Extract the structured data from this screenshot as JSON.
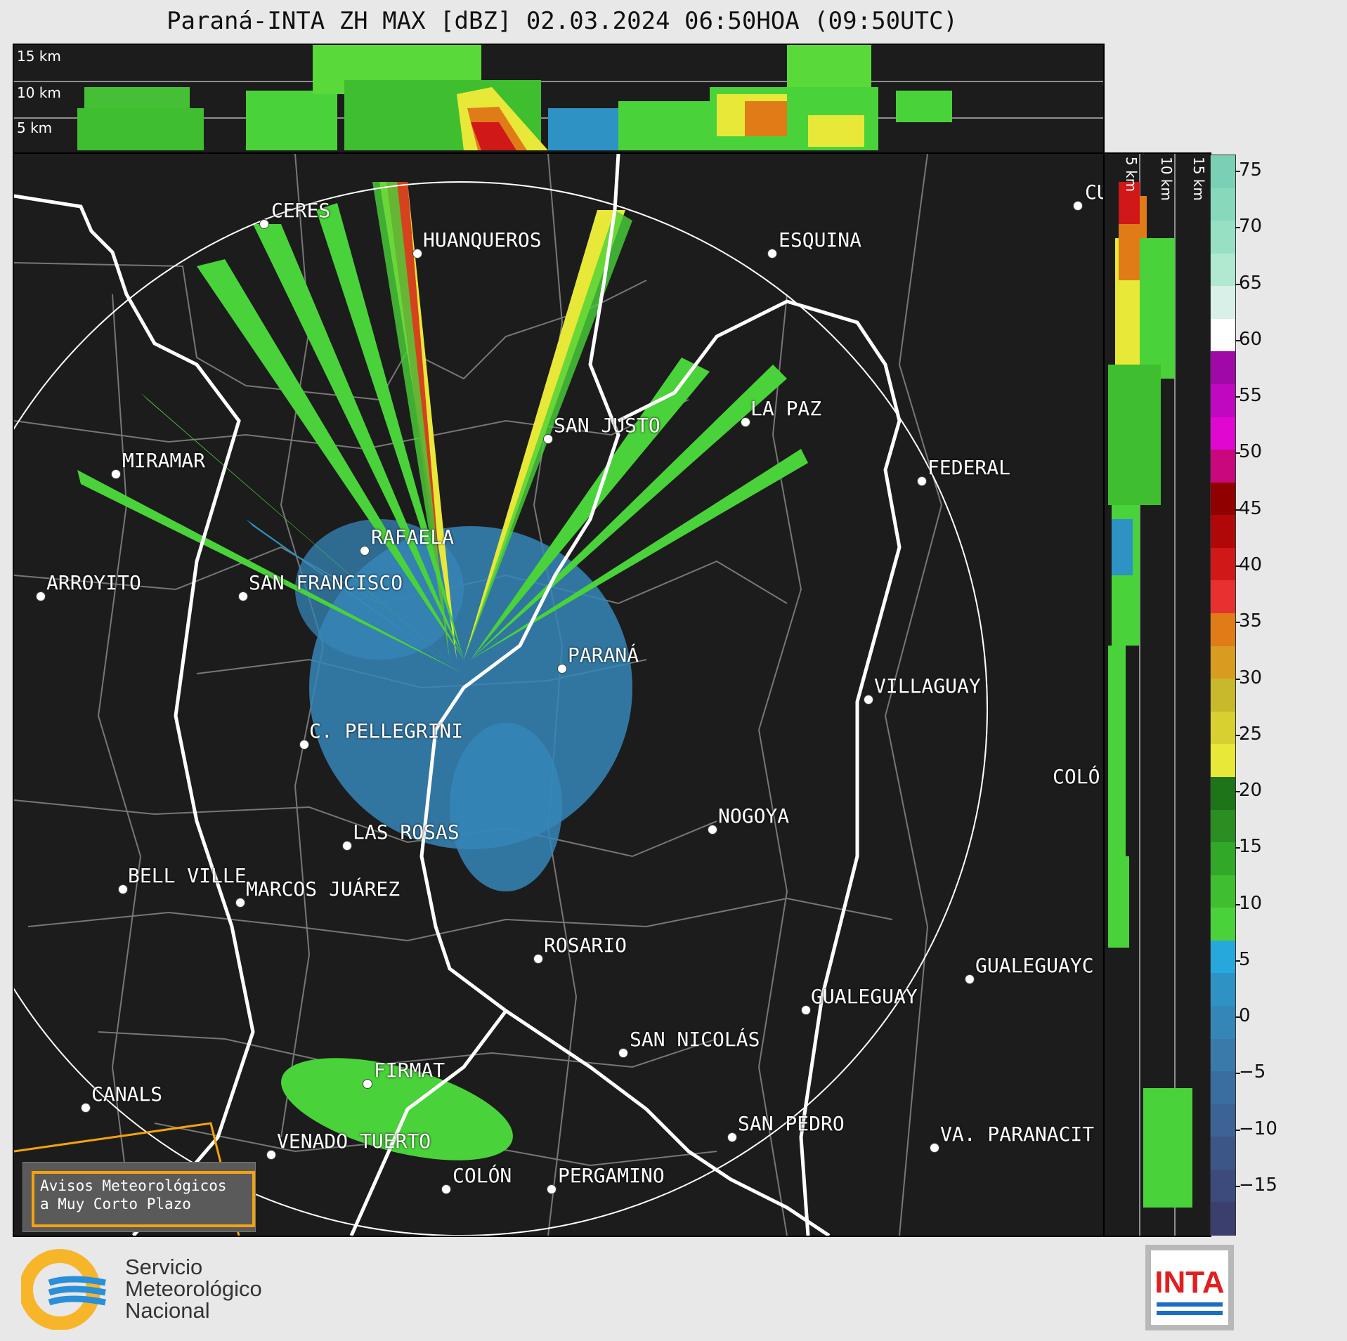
{
  "title": "Paraná-INTA ZH MAX [dBZ] 02.03.2024 06:50HOA (09:50UTC)",
  "top_panel": {
    "height_labels": [
      "15 km",
      "10 km",
      "5 km"
    ]
  },
  "side_panel": {
    "height_labels": [
      "5 km",
      "10 km",
      "15 km"
    ]
  },
  "cities": [
    {
      "name": "CERES",
      "lx": 0.227,
      "ly": 0.065
    },
    {
      "name": "HUANQUEROS",
      "lx": 0.368,
      "ly": 0.092
    },
    {
      "name": "ESQUINA",
      "lx": 0.694,
      "ly": 0.092
    },
    {
      "name": "CU",
      "lx": 0.977,
      "ly": 0.048
    },
    {
      "name": "SAN JUSTO",
      "lx": 0.487,
      "ly": 0.263
    },
    {
      "name": "LA PAZ",
      "lx": 0.669,
      "ly": 0.248
    },
    {
      "name": "MIRAMAR",
      "lx": 0.092,
      "ly": 0.296
    },
    {
      "name": "FEDERAL",
      "lx": 0.832,
      "ly": 0.302
    },
    {
      "name": "RAFAELA",
      "lx": 0.319,
      "ly": 0.366
    },
    {
      "name": "ARROYITO",
      "lx": 0.024,
      "ly": 0.409
    },
    {
      "name": "SAN FRANCISCO",
      "lx": 0.208,
      "ly": 0.409
    },
    {
      "name": "PARANÁ",
      "lx": 0.503,
      "ly": 0.476
    },
    {
      "name": "VILLAGUAY",
      "lx": 0.783,
      "ly": 0.504
    },
    {
      "name": "C. PELLEGRINI",
      "lx": 0.264,
      "ly": 0.545
    },
    {
      "name": "COLÓ",
      "lx": 0.956,
      "ly": 0.578
    },
    {
      "name": "NOGOYA",
      "lx": 0.64,
      "ly": 0.62
    },
    {
      "name": "LAS ROSAS",
      "lx": 0.304,
      "ly": 0.636
    },
    {
      "name": "BELL VILLE",
      "lx": 0.098,
      "ly": 0.678
    },
    {
      "name": "MARCOS JUÁREZ",
      "lx": 0.206,
      "ly": 0.691
    },
    {
      "name": "ROSARIO",
      "lx": 0.481,
      "ly": 0.741
    },
    {
      "name": "GUALEGUAYC",
      "lx": 0.876,
      "ly": 0.761
    },
    {
      "name": "GUALEGUAY",
      "lx": 0.726,
      "ly": 0.788
    },
    {
      "name": "SAN NICOLÁS",
      "lx": 0.561,
      "ly": 0.828
    },
    {
      "name": "FIRMAT",
      "lx": 0.325,
      "ly": 0.855
    },
    {
      "name": "CANALS",
      "lx": 0.064,
      "ly": 0.876
    },
    {
      "name": "SAN PEDRO",
      "lx": 0.659,
      "ly": 0.905
    },
    {
      "name": "VA. PARANACIT",
      "lx": 0.845,
      "ly": 0.915
    },
    {
      "name": "VENADO TUERTO",
      "lx": 0.235,
      "ly": 0.922
    },
    {
      "name": "COLÓN",
      "lx": 0.395,
      "ly": 0.952
    },
    {
      "name": "PERGAMINO",
      "lx": 0.492,
      "ly": 0.952
    }
  ],
  "warning": {
    "line1": "Avisos Meteorológicos",
    "line2": "a Muy Corto Plazo"
  },
  "colorbar": {
    "ticks": [
      "75",
      "70",
      "65",
      "60",
      "55",
      "50",
      "45",
      "40",
      "35",
      "30",
      "25",
      "20",
      "15",
      "10",
      "5",
      "0",
      "−5",
      "−10",
      "−15"
    ],
    "colors": [
      "#3a3f6e",
      "#3c4a7c",
      "#3d5688",
      "#3d6294",
      "#3b6ea0",
      "#3a7aab",
      "#3586b8",
      "#2e93c4",
      "#26a8dc",
      "#4ad23a",
      "#3fbe30",
      "#32a828",
      "#2a8e22",
      "#1e7418",
      "#e8e838",
      "#d8d030",
      "#c8b82c",
      "#d89c20",
      "#e07c18",
      "#e83030",
      "#d01818",
      "#b00808",
      "#900000",
      "#c8087c",
      "#e008d0",
      "#c008c0",
      "#a008a8",
      "#ffffff",
      "#d8f0e8",
      "#b0e8d0",
      "#98e0c4",
      "#88d8bc",
      "#7ad0b4"
    ]
  },
  "logos": {
    "smn": {
      "line1": "Servicio",
      "line2": "Meteorológico",
      "line3": "Nacional"
    },
    "inta": "INTA"
  }
}
